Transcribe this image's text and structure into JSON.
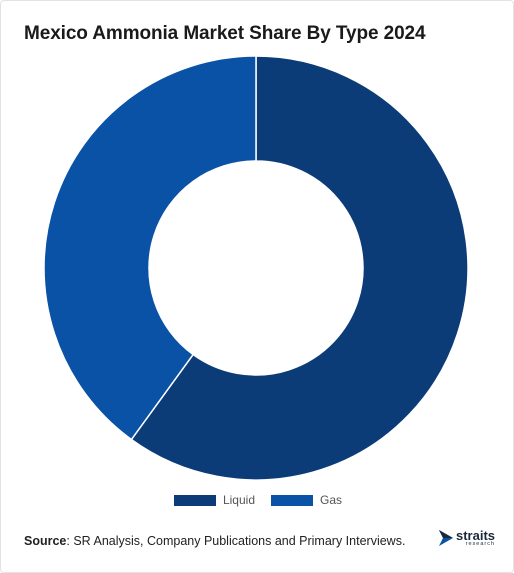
{
  "title": "Mexico Ammonia Market Share By Type 2024",
  "chart_data": {
    "type": "pie",
    "donut": true,
    "categories": [
      "Liquid",
      "Gas"
    ],
    "values": [
      60,
      40
    ],
    "colors": [
      "#0b3c78",
      "#0a52a5"
    ],
    "legend_position": "bottom"
  },
  "source": {
    "label": "Source",
    "text": ": SR Analysis, Company Publications and Primary Interviews."
  },
  "logo": {
    "word": "straits",
    "sub": "research"
  }
}
